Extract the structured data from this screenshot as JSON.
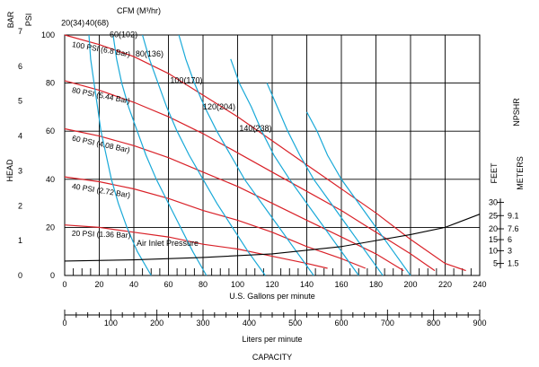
{
  "chart_data": {
    "type": "line",
    "title": "",
    "xlabel": "U.S. Gallons per minute",
    "xlabel2": "Liters per minute",
    "caption": "CAPACITY",
    "ylabel": "HEAD",
    "ylabel_bar": "BAR",
    "ylabel_psi": "PSI",
    "right_label": "NPSHR",
    "right_feet": "FEET",
    "right_meters": "METERS",
    "cfm_label": "CFM (M³/hr)",
    "x_gpm": {
      "min": 0,
      "max": 240,
      "ticks": [
        0,
        20,
        40,
        60,
        80,
        100,
        120,
        140,
        160,
        180,
        200,
        220,
        240
      ],
      "labels": [
        "0",
        "20",
        "40",
        "60",
        "80",
        "100",
        "120",
        "140",
        "160",
        "180",
        "200",
        "220",
        "240"
      ]
    },
    "x_lpm": {
      "min": 0,
      "max": 900,
      "ticks": [
        0,
        100,
        200,
        300,
        400,
        500,
        600,
        700,
        800,
        900
      ],
      "labels": [
        "0",
        "100",
        "200",
        "300",
        "400",
        "500",
        "600",
        "700",
        "800",
        "900"
      ]
    },
    "y_psi": {
      "min": 0,
      "max": 100,
      "ticks": [
        0,
        20,
        40,
        60,
        80,
        100
      ],
      "labels": [
        "0",
        "20",
        "40",
        "60",
        "80",
        "100"
      ]
    },
    "y_bar_labels": [
      {
        "psi": 0,
        "label": "0"
      },
      {
        "psi": 14.5,
        "label": "1"
      },
      {
        "psi": 29,
        "label": "2"
      },
      {
        "psi": 43.5,
        "label": "3"
      },
      {
        "psi": 58,
        "label": "4"
      },
      {
        "psi": 72.5,
        "label": "5"
      },
      {
        "psi": 87,
        "label": "6"
      },
      {
        "psi": 101.5,
        "label": "7"
      }
    ],
    "npshr_feet": [
      {
        "psi": 5,
        "label": "5"
      },
      {
        "psi": 10.3,
        "label": "10"
      },
      {
        "psi": 14.9,
        "label": "15"
      },
      {
        "psi": 19.4,
        "label": "20"
      },
      {
        "psi": 24.9,
        "label": "25"
      },
      {
        "psi": 30.4,
        "label": "30"
      }
    ],
    "npshr_meters": [
      {
        "psi": 5,
        "label": "1.5"
      },
      {
        "psi": 10.3,
        "label": "3"
      },
      {
        "psi": 14.9,
        "label": "6"
      },
      {
        "psi": 19.4,
        "label": "7.6"
      },
      {
        "psi": 24.9,
        "label": "9.1"
      }
    ],
    "inlet_pressure_series": [
      {
        "name": "100 PSI (6.8 Bar)",
        "points": [
          [
            0,
            100
          ],
          [
            20,
            96
          ],
          [
            40,
            91
          ],
          [
            60,
            84
          ],
          [
            80,
            75
          ],
          [
            100,
            66
          ],
          [
            120,
            56
          ],
          [
            140,
            46
          ],
          [
            160,
            36
          ],
          [
            180,
            26
          ],
          [
            200,
            15
          ],
          [
            220,
            5
          ],
          [
            232,
            2
          ]
        ]
      },
      {
        "name": "80 PSI (5.44 Bar)",
        "points": [
          [
            0,
            81
          ],
          [
            20,
            77
          ],
          [
            40,
            72
          ],
          [
            60,
            66
          ],
          [
            80,
            59
          ],
          [
            100,
            51
          ],
          [
            120,
            43
          ],
          [
            140,
            35
          ],
          [
            160,
            27
          ],
          [
            180,
            18
          ],
          [
            200,
            9
          ],
          [
            214,
            2
          ]
        ]
      },
      {
        "name": "60 PSI (4.08 Bar)",
        "points": [
          [
            0,
            61
          ],
          [
            20,
            58
          ],
          [
            40,
            54
          ],
          [
            60,
            49
          ],
          [
            80,
            43
          ],
          [
            100,
            37
          ],
          [
            120,
            30
          ],
          [
            140,
            23
          ],
          [
            160,
            16
          ],
          [
            180,
            9
          ],
          [
            196,
            2
          ]
        ]
      },
      {
        "name": "40 PSI (2.72 Bar)",
        "points": [
          [
            0,
            41
          ],
          [
            20,
            39
          ],
          [
            40,
            36
          ],
          [
            60,
            32
          ],
          [
            80,
            27
          ],
          [
            100,
            23
          ],
          [
            120,
            18
          ],
          [
            140,
            12
          ],
          [
            160,
            7
          ],
          [
            174,
            3
          ]
        ]
      },
      {
        "name": "20 PSI (1.36 Bar)",
        "points": [
          [
            0,
            21
          ],
          [
            20,
            20
          ],
          [
            40,
            18
          ],
          [
            60,
            16
          ],
          [
            80,
            13
          ],
          [
            100,
            11
          ],
          [
            120,
            8
          ],
          [
            140,
            5
          ],
          [
            152,
            3
          ]
        ]
      }
    ],
    "air_consumption_series": [
      {
        "name": "20(34)",
        "points": [
          [
            14,
            100
          ],
          [
            15,
            90
          ],
          [
            17,
            80
          ],
          [
            19,
            70
          ],
          [
            21,
            60
          ],
          [
            24,
            50
          ],
          [
            27,
            40
          ],
          [
            31,
            30
          ],
          [
            36,
            20
          ],
          [
            42,
            10
          ],
          [
            50,
            0
          ]
        ]
      },
      {
        "name": "40(68)",
        "points": [
          [
            28,
            100
          ],
          [
            30,
            90
          ],
          [
            33,
            80
          ],
          [
            37,
            70
          ],
          [
            42,
            60
          ],
          [
            47,
            50
          ],
          [
            53,
            40
          ],
          [
            60,
            30
          ],
          [
            67,
            20
          ],
          [
            74,
            10
          ],
          [
            82,
            0
          ]
        ]
      },
      {
        "name": "60(102)",
        "points": [
          [
            45,
            100
          ],
          [
            49,
            90
          ],
          [
            54,
            80
          ],
          [
            59,
            70
          ],
          [
            65,
            60
          ],
          [
            72,
            50
          ],
          [
            80,
            40
          ],
          [
            88,
            30
          ],
          [
            97,
            20
          ],
          [
            106,
            10
          ],
          [
            116,
            0
          ]
        ]
      },
      {
        "name": "80(136)",
        "points": [
          [
            66,
            100
          ],
          [
            70,
            90
          ],
          [
            75,
            80
          ],
          [
            81,
            70
          ],
          [
            88,
            60
          ],
          [
            96,
            50
          ],
          [
            104,
            40
          ],
          [
            114,
            30
          ],
          [
            124,
            20
          ],
          [
            134,
            10
          ],
          [
            144,
            0
          ]
        ]
      },
      {
        "name": "100(170)",
        "points": [
          [
            96,
            90
          ],
          [
            101,
            80
          ],
          [
            108,
            70
          ],
          [
            114,
            60
          ],
          [
            121,
            50
          ],
          [
            130,
            40
          ],
          [
            140,
            30
          ],
          [
            150,
            20
          ],
          [
            160,
            10
          ],
          [
            170,
            0
          ]
        ]
      },
      {
        "name": "120(204)",
        "points": [
          [
            117,
            80
          ],
          [
            123,
            70
          ],
          [
            129,
            60
          ],
          [
            136,
            50
          ],
          [
            144,
            40
          ],
          [
            154,
            30
          ],
          [
            164,
            20
          ],
          [
            174,
            10
          ],
          [
            184,
            0
          ]
        ]
      },
      {
        "name": "140(238)",
        "points": [
          [
            140,
            68
          ],
          [
            146,
            60
          ],
          [
            152,
            50
          ],
          [
            160,
            40
          ],
          [
            170,
            30
          ],
          [
            180,
            20
          ],
          [
            190,
            10
          ],
          [
            200,
            0
          ]
        ]
      }
    ],
    "npshr_curve": {
      "name": "Air Inlet Pressure",
      "points": [
        [
          0,
          6
        ],
        [
          40,
          6.5
        ],
        [
          80,
          7.5
        ],
        [
          120,
          9
        ],
        [
          160,
          12
        ],
        [
          200,
          17
        ],
        [
          220,
          20
        ],
        [
          240,
          25.5
        ]
      ]
    },
    "annotations": {
      "air_inlet_pressure": "Air Inlet Pressure"
    },
    "colors": {
      "inlet_pressure": "#d92128",
      "air_consumption": "#19a9d8",
      "npshr": "#000000",
      "grid": "#000000"
    },
    "grid": true
  }
}
